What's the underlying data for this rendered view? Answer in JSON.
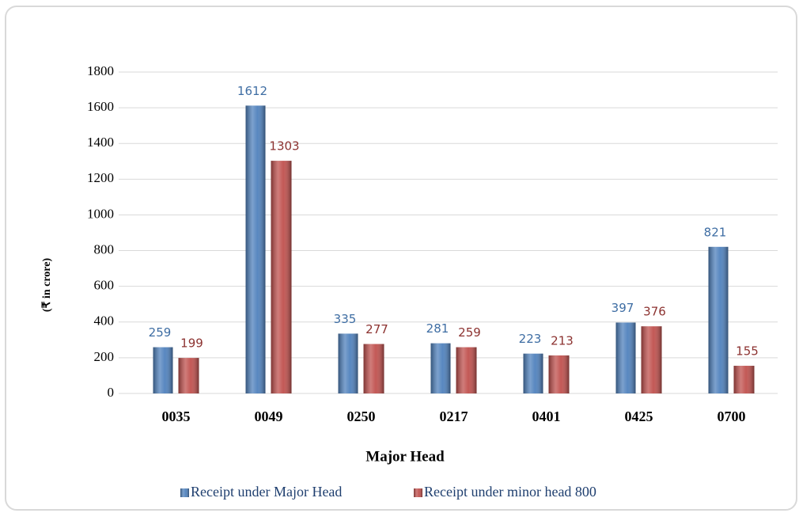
{
  "chart_data": {
    "type": "bar",
    "y_label": "(₹ in crore)",
    "x_label": "Major Head",
    "categories": [
      "0035",
      "0049",
      "0250",
      "0217",
      "0401",
      "0425",
      "0700"
    ],
    "series": [
      {
        "name": "Receipt under Major Head",
        "color": "#4f81bd",
        "label_color": "#3e6da3",
        "values": [
          259,
          1612,
          335,
          281,
          223,
          397,
          821
        ]
      },
      {
        "name": "Receipt under minor head 800",
        "color": "#c0504d",
        "label_color": "#8c3230",
        "values": [
          199,
          1303,
          277,
          259,
          213,
          376,
          155
        ]
      }
    ],
    "ylim": [
      0,
      1800
    ],
    "yticks": [
      0,
      200,
      400,
      600,
      800,
      1000,
      1200,
      1400,
      1600,
      1800
    ],
    "grid": true,
    "legend": "bottom"
  }
}
